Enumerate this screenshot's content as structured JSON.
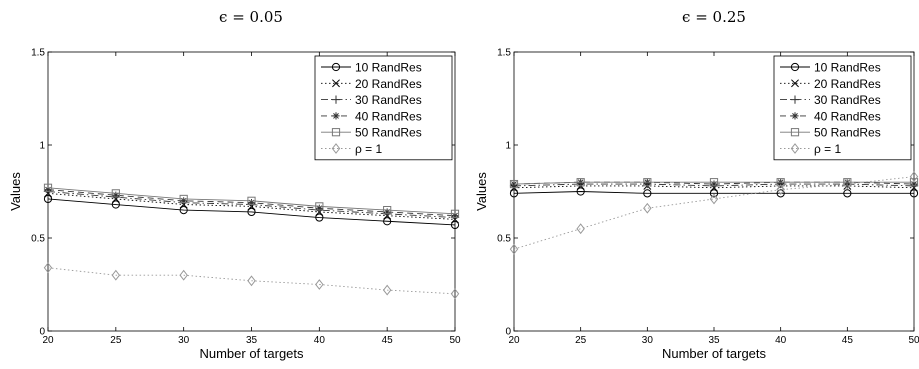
{
  "chart_data": [
    {
      "type": "line",
      "title": "ϵ = 0.05",
      "xlabel": "Number of targets",
      "ylabel": "Values",
      "x": [
        20,
        25,
        30,
        35,
        40,
        45,
        50
      ],
      "xlim": [
        20,
        50
      ],
      "ylim": [
        0,
        1.5
      ],
      "xticks": [
        "20",
        "25",
        "30",
        "35",
        "40",
        "45",
        "50"
      ],
      "yticks": [
        "0",
        "0.5",
        "1",
        "1.5"
      ],
      "grid": false,
      "legend_position": "top-right",
      "series": [
        {
          "name": "10 RandRes",
          "marker": "circle",
          "dash": "solid",
          "color": "#000000",
          "values": [
            0.71,
            0.68,
            0.65,
            0.64,
            0.61,
            0.59,
            0.57
          ]
        },
        {
          "name": "20 RandRes",
          "marker": "x",
          "dash": "dotted",
          "color": "#000000",
          "values": [
            0.74,
            0.71,
            0.68,
            0.67,
            0.64,
            0.62,
            0.6
          ]
        },
        {
          "name": "30 RandRes",
          "marker": "plus",
          "dash": "dashdot",
          "color": "#333333",
          "values": [
            0.75,
            0.72,
            0.69,
            0.68,
            0.65,
            0.63,
            0.61
          ]
        },
        {
          "name": "40 RandRes",
          "marker": "star",
          "dash": "dashed",
          "color": "#333333",
          "values": [
            0.76,
            0.73,
            0.7,
            0.69,
            0.66,
            0.64,
            0.62
          ]
        },
        {
          "name": "50 RandRes",
          "marker": "square",
          "dash": "solid",
          "color": "#777777",
          "values": [
            0.77,
            0.74,
            0.71,
            0.7,
            0.67,
            0.65,
            0.63
          ]
        },
        {
          "name": "ρ = 1",
          "marker": "diamond",
          "dash": "dotted",
          "color": "#999999",
          "values": [
            0.34,
            0.3,
            0.3,
            0.27,
            0.25,
            0.22,
            0.2
          ]
        }
      ]
    },
    {
      "type": "line",
      "title": "ϵ = 0.25",
      "xlabel": "Number of targets",
      "ylabel": "Values",
      "x": [
        20,
        25,
        30,
        35,
        40,
        45,
        50
      ],
      "xlim": [
        20,
        50
      ],
      "ylim": [
        0,
        1.5
      ],
      "xticks": [
        "20",
        "25",
        "30",
        "35",
        "40",
        "45",
        "50"
      ],
      "yticks": [
        "0",
        "0.5",
        "1",
        "1.5"
      ],
      "grid": false,
      "legend_position": "top-right",
      "series": [
        {
          "name": "10 RandRes",
          "marker": "circle",
          "dash": "solid",
          "color": "#000000",
          "values": [
            0.74,
            0.75,
            0.74,
            0.74,
            0.74,
            0.74,
            0.74
          ]
        },
        {
          "name": "20 RandRes",
          "marker": "x",
          "dash": "dotted",
          "color": "#000000",
          "values": [
            0.77,
            0.78,
            0.78,
            0.77,
            0.78,
            0.78,
            0.77
          ]
        },
        {
          "name": "30 RandRes",
          "marker": "plus",
          "dash": "dashdot",
          "color": "#333333",
          "values": [
            0.78,
            0.79,
            0.79,
            0.78,
            0.79,
            0.79,
            0.78
          ]
        },
        {
          "name": "40 RandRes",
          "marker": "star",
          "dash": "dashed",
          "color": "#333333",
          "values": [
            0.79,
            0.8,
            0.8,
            0.79,
            0.8,
            0.8,
            0.79
          ]
        },
        {
          "name": "50 RandRes",
          "marker": "square",
          "dash": "solid",
          "color": "#777777",
          "values": [
            0.79,
            0.8,
            0.8,
            0.8,
            0.8,
            0.8,
            0.8
          ]
        },
        {
          "name": "ρ = 1",
          "marker": "diamond",
          "dash": "dotted",
          "color": "#999999",
          "values": [
            0.44,
            0.55,
            0.66,
            0.71,
            0.76,
            0.79,
            0.83
          ]
        }
      ]
    }
  ]
}
